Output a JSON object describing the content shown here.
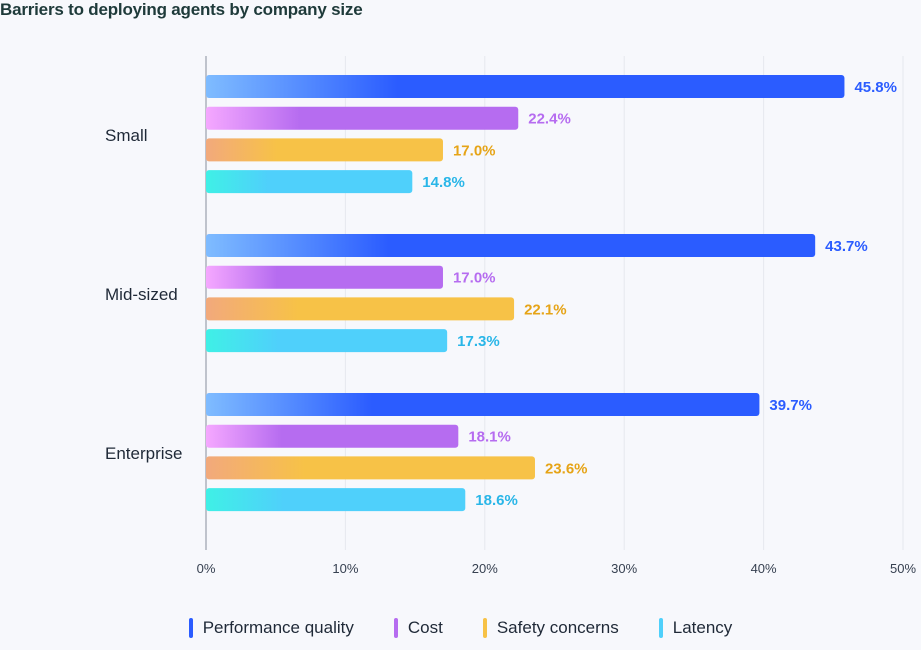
{
  "chart_data": {
    "type": "bar",
    "orientation": "horizontal",
    "title": "Barriers to deploying agents by company size",
    "categories": [
      "Small",
      "Mid-sized",
      "Enterprise"
    ],
    "series": [
      {
        "name": "Performance quality",
        "values": [
          45.8,
          43.7,
          39.7
        ],
        "value_labels": [
          "45.8%",
          "43.7%",
          "39.7%"
        ],
        "color": "#2b5cff",
        "color_light": "#7fbcff"
      },
      {
        "name": "Cost",
        "values": [
          22.4,
          17.0,
          18.1
        ],
        "value_labels": [
          "22.4%",
          "17.0%",
          "18.1%"
        ],
        "color": "#b66cf0",
        "color_light": "#f5a8ff"
      },
      {
        "name": "Safety concerns",
        "values": [
          17.0,
          22.1,
          23.6
        ],
        "value_labels": [
          "17.0%",
          "22.1%",
          "23.6%"
        ],
        "color": "#f7c247",
        "color_light": "#f2a97c"
      },
      {
        "name": "Latency",
        "values": [
          14.8,
          17.3,
          18.6
        ],
        "value_labels": [
          "14.8%",
          "17.3%",
          "18.6%"
        ],
        "color": "#4fd0fb",
        "color_light": "#3ff0e6"
      }
    ],
    "xlim": [
      0,
      50
    ],
    "x_ticks": [
      0,
      10,
      20,
      30,
      40,
      50
    ],
    "x_tick_labels": [
      "0%",
      "10%",
      "20%",
      "30%",
      "40%",
      "50%"
    ],
    "label_colors": [
      "#2b5cff",
      "#b66cf0",
      "#e6a417",
      "#29b6e8"
    ],
    "grid": true,
    "legend_position": "bottom"
  }
}
